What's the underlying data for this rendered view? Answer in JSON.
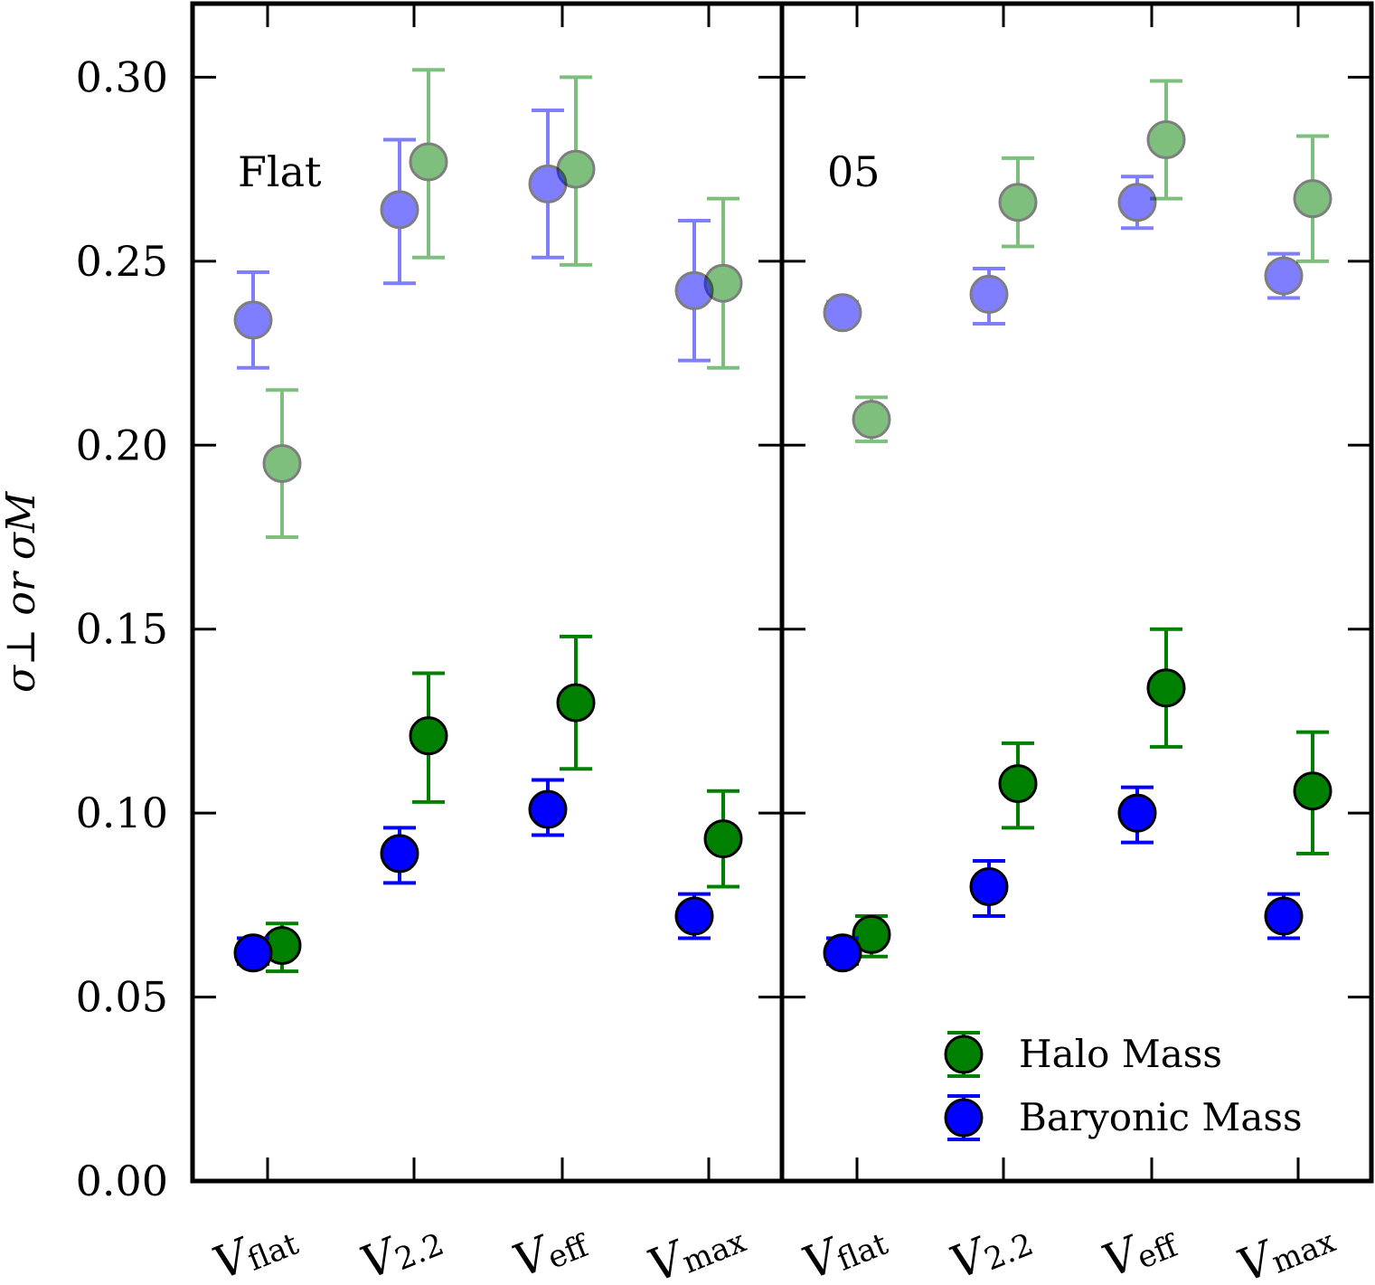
{
  "chart_data": {
    "type": "scatter",
    "ylabel": "σ⊥ or σM",
    "ylim": [
      0.0,
      0.32
    ],
    "yticks": [
      "0.00",
      "0.05",
      "0.10",
      "0.15",
      "0.20",
      "0.25",
      "0.30"
    ],
    "categories": [
      {
        "main": "V",
        "sub": "flat"
      },
      {
        "main": "V",
        "sub": "2.2"
      },
      {
        "main": "V",
        "sub": "eff"
      },
      {
        "main": "V",
        "sub": "max"
      }
    ],
    "colors": {
      "halo": "#008000",
      "baryonic": "#0000ff"
    },
    "legend": {
      "position": "lower right",
      "entries": [
        "Halo Mass",
        "Baryonic Mass"
      ]
    },
    "panels": [
      {
        "label": "Flat",
        "series": [
          {
            "name": "Halo Mass",
            "metric": "sigma_M",
            "color": "#008000",
            "values": [
              0.064,
              0.121,
              0.13,
              0.093
            ],
            "err_low": [
              0.057,
              0.103,
              0.112,
              0.08
            ],
            "err_high": [
              0.07,
              0.138,
              0.148,
              0.106
            ]
          },
          {
            "name": "Baryonic Mass",
            "metric": "sigma_M",
            "color": "#0000ff",
            "values": [
              0.062,
              0.089,
              0.101,
              0.072
            ],
            "err_low": [
              0.059,
              0.081,
              0.094,
              0.066
            ],
            "err_high": [
              0.066,
              0.096,
              0.109,
              0.078
            ]
          },
          {
            "name": "Halo Mass",
            "metric": "sigma_perp",
            "color": "#008000",
            "values": [
              0.195,
              0.277,
              0.275,
              0.244
            ],
            "err_low": [
              0.175,
              0.251,
              0.249,
              0.221
            ],
            "err_high": [
              0.215,
              0.302,
              0.3,
              0.267
            ]
          },
          {
            "name": "Baryonic Mass",
            "metric": "sigma_perp",
            "color": "#0000ff",
            "values": [
              0.234,
              0.264,
              0.271,
              0.242
            ],
            "err_low": [
              0.221,
              0.244,
              0.251,
              0.223
            ],
            "err_high": [
              0.247,
              0.283,
              0.291,
              0.261
            ]
          }
        ]
      },
      {
        "label": "05",
        "series": [
          {
            "name": "Halo Mass",
            "metric": "sigma_M",
            "color": "#008000",
            "values": [
              0.067,
              0.108,
              0.134,
              0.106
            ],
            "err_low": [
              0.061,
              0.096,
              0.118,
              0.089
            ],
            "err_high": [
              0.072,
              0.119,
              0.15,
              0.122
            ]
          },
          {
            "name": "Baryonic Mass",
            "metric": "sigma_M",
            "color": "#0000ff",
            "values": [
              0.062,
              0.08,
              0.1,
              0.072
            ],
            "err_low": [
              0.059,
              0.072,
              0.092,
              0.066
            ],
            "err_high": [
              0.066,
              0.087,
              0.107,
              0.078
            ]
          },
          {
            "name": "Halo Mass",
            "metric": "sigma_perp",
            "color": "#008000",
            "values": [
              0.207,
              0.266,
              0.283,
              0.267
            ],
            "err_low": [
              0.201,
              0.254,
              0.267,
              0.25
            ],
            "err_high": [
              0.213,
              0.278,
              0.299,
              0.284
            ]
          },
          {
            "name": "Baryonic Mass",
            "metric": "sigma_perp",
            "color": "#0000ff",
            "values": [
              0.236,
              0.241,
              0.266,
              0.246
            ],
            "err_low": [
              0.234,
              0.233,
              0.259,
              0.24
            ],
            "err_high": [
              0.239,
              0.248,
              0.273,
              0.252
            ]
          }
        ]
      }
    ]
  }
}
